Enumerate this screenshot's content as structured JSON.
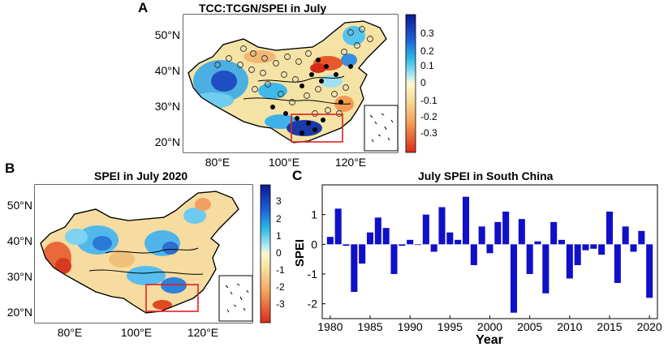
{
  "panel_a": {
    "letter": "A",
    "title": "TCC:TCGN/SPEI in July",
    "lat_ticks": [
      "50°N",
      "40°N",
      "30°N",
      "20°N"
    ],
    "lon_ticks": [
      "80°E",
      "100°E",
      "120°E"
    ],
    "colorbar_ticks": [
      "0.3",
      "0.2",
      "0.1",
      "0",
      "-0.1",
      "-0.2",
      "-0.3"
    ]
  },
  "panel_b": {
    "letter": "B",
    "title": "SPEI in July 2020",
    "lat_ticks": [
      "50°N",
      "40°N",
      "30°N",
      "20°N"
    ],
    "lon_ticks": [
      "80°E",
      "100°E",
      "120°E"
    ],
    "colorbar_ticks": [
      "3",
      "2",
      "1",
      "0",
      "-1",
      "-2",
      "-3"
    ]
  },
  "panel_c": {
    "letter": "C"
  },
  "colors": {
    "bar": "#1010c8",
    "box": "#e02020",
    "cb_low": "#d92a1a",
    "cb_mid": "#fff2b0",
    "cb_high": "#101aa0"
  },
  "chart_data": {
    "type": "bar",
    "title": "July SPEI in South China",
    "xlabel": "Year",
    "ylabel": "SPEI",
    "x": [
      1980,
      1981,
      1982,
      1983,
      1984,
      1985,
      1986,
      1987,
      1988,
      1989,
      1990,
      1991,
      1992,
      1993,
      1994,
      1995,
      1996,
      1997,
      1998,
      1999,
      2000,
      2001,
      2002,
      2003,
      2004,
      2005,
      2006,
      2007,
      2008,
      2009,
      2010,
      2011,
      2012,
      2013,
      2014,
      2015,
      2016,
      2017,
      2018,
      2019,
      2020
    ],
    "values": [
      0.25,
      1.2,
      -0.05,
      -1.6,
      -0.65,
      0.4,
      0.9,
      0.55,
      -1.0,
      -0.05,
      0.15,
      0.0,
      1.0,
      -0.25,
      1.25,
      0.4,
      0.15,
      1.6,
      -0.7,
      0.6,
      -0.3,
      0.75,
      1.1,
      -2.3,
      0.85,
      -1.0,
      0.1,
      -1.65,
      0.75,
      0.15,
      -1.15,
      -0.7,
      -0.2,
      -0.15,
      -0.35,
      1.1,
      -1.3,
      0.6,
      -0.25,
      0.45,
      -1.8
    ],
    "xticks": [
      "1980",
      "1985",
      "1990",
      "1995",
      "2000",
      "2005",
      "2010",
      "2015",
      "2020"
    ],
    "yticks": [
      "-2",
      "-1",
      "0",
      "1"
    ],
    "ylim": [
      -2.5,
      2
    ],
    "xlim": [
      1979,
      2021
    ],
    "grid": false
  }
}
